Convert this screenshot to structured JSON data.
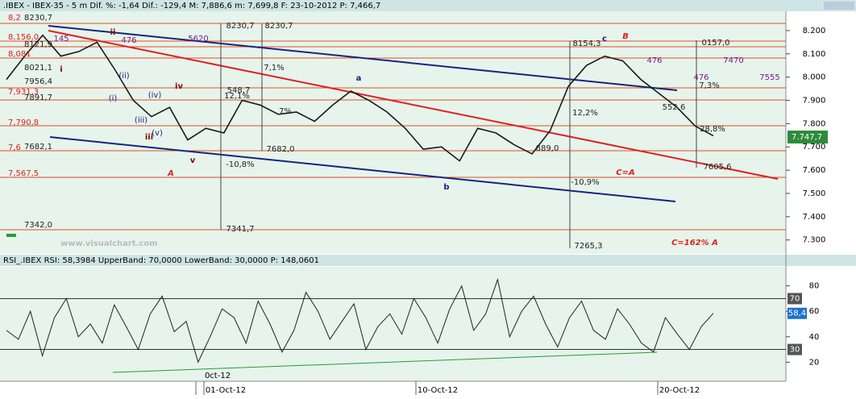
{
  "header": ".IBEX - IBEX-35 -  5 m Dif. %: -1,64 Dif.: -129,4 M: 7,886,6 m: 7,699,8 F: 23-10-2012 P: 7,466,7",
  "rsi_header": "RSI_.IBEX RSI: 58,3984 UpperBand: 70,0000 LowerBand: 30,0000 P: 148,0601",
  "watermark": "www.visualchart.com",
  "price_box": "7.747,7",
  "dates": [
    "0ct-12",
    "01-Oct-12",
    "10-Oct-12",
    "20-Oct-12"
  ],
  "annotations": [
    "A",
    "B",
    "C=A",
    "C=162% A",
    "a",
    "b",
    "c",
    "i",
    "ii",
    "iii",
    "iv",
    "v",
    "(i)",
    "(ii)",
    "(iii)",
    "(iv)",
    "(v)",
    "8230,7",
    "8230,7",
    "7682,0",
    "7341,7",
    "548,7",
    "12,1%",
    "7,1%",
    "7%",
    "-10,8%",
    "5620",
    "476",
    "8154,3",
    "12,2%",
    "889,0",
    "-10,9%",
    "7265,3",
    "0157,0",
    "476",
    "7470",
    "476",
    "7555",
    "7,3%",
    "552,6",
    "28,8%",
    "7605,6",
    "145"
  ],
  "left_labels": [
    "8,2",
    "8230,7",
    "8,156,0",
    "8121,9",
    "8,081",
    "8021,1",
    "7956,4",
    "7,931,3",
    "7891,7",
    "7,790,8",
    "7,6",
    "7682,1",
    "7,567,5",
    "7342,0"
  ],
  "chart_data": [
    {
      "type": "line",
      "ylim": [
        7240,
        8283
      ],
      "yticks": [
        {
          "value": 8200,
          "label": "8.200"
        },
        {
          "value": 8100,
          "label": "8.100"
        },
        {
          "value": 8000,
          "label": "8.000"
        },
        {
          "value": 7900,
          "label": "7.900"
        },
        {
          "value": 7800,
          "label": "7.800"
        },
        {
          "value": 7700,
          "label": "7.700"
        },
        {
          "value": 7600,
          "label": "7.600"
        },
        {
          "value": 7500,
          "label": "7.500"
        },
        {
          "value": 7400,
          "label": "7.400"
        },
        {
          "value": 7300,
          "label": "7.300"
        }
      ],
      "series": [
        {
          "name": "IBEX-35",
          "color": "#1a1a1a",
          "values": [
            7990,
            8090,
            8180,
            8090,
            8110,
            8150,
            8030,
            7900,
            7830,
            7870,
            7730,
            7780,
            7760,
            7900,
            7880,
            7840,
            7850,
            7810,
            7880,
            7940,
            7900,
            7850,
            7780,
            7690,
            7700,
            7640,
            7780,
            7760,
            7710,
            7670,
            7770,
            7960,
            8050,
            8090,
            8070,
            7990,
            7930,
            7870,
            7790,
            7748
          ]
        }
      ]
    },
    {
      "type": "line",
      "ylim": [
        5,
        95
      ],
      "yticks": [
        20,
        40,
        60,
        80
      ],
      "bands": [
        70,
        30
      ],
      "last_label": "58,4",
      "series": [
        {
          "name": "RSI",
          "color": "#222",
          "values": [
            45,
            38,
            60,
            25,
            55,
            70,
            40,
            50,
            35,
            65,
            48,
            30,
            58,
            72,
            44,
            52,
            20,
            40,
            62,
            55,
            35,
            68,
            50,
            28,
            45,
            75,
            60,
            38,
            52,
            66,
            30,
            48,
            58,
            42,
            70,
            55,
            35,
            62,
            80,
            45,
            58,
            85,
            40,
            60,
            72,
            50,
            32,
            55,
            68,
            45,
            38,
            62,
            50,
            35,
            28,
            55,
            42,
            30,
            48,
            58.4
          ]
        }
      ]
    }
  ]
}
